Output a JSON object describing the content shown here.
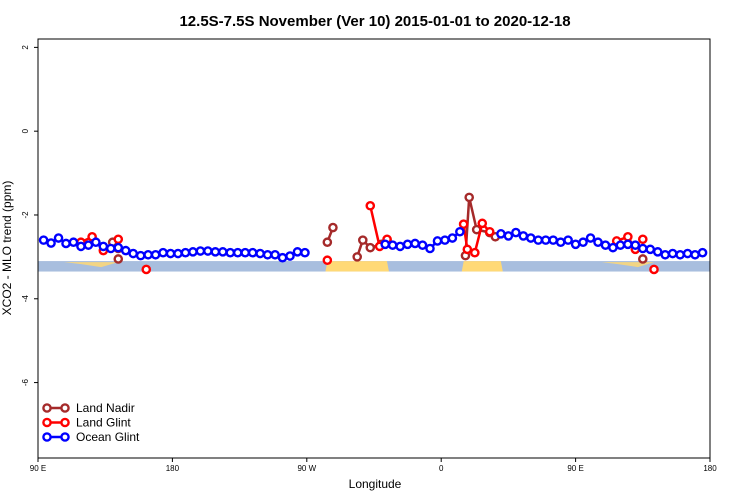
{
  "chart_data": {
    "type": "line",
    "title": "12.5S-7.5S November (Ver 10)   2015-01-01 to 2020-12-18",
    "xlabel": "Longitude",
    "ylabel": "XCO2 - MLO trend (ppm)",
    "xlim": [
      0,
      360
    ],
    "ylim": [
      -7.8,
      2.2
    ],
    "x_ticks": [
      {
        "value": 0,
        "label": "90 E"
      },
      {
        "value": 72,
        "label": "180"
      },
      {
        "value": 144,
        "label": "90 W"
      },
      {
        "value": 216,
        "label": "0"
      },
      {
        "value": 288,
        "label": "90 E"
      },
      {
        "value": 360,
        "label": "180"
      }
    ],
    "y_ticks": [
      {
        "value": 2,
        "label": "2"
      },
      {
        "value": 0,
        "label": "0"
      },
      {
        "value": -2,
        "label": "-2"
      },
      {
        "value": -4,
        "label": "-4"
      },
      {
        "value": -6,
        "label": "-6"
      }
    ],
    "land_mask": {
      "baseline_y": -3.35,
      "band_top": -3.1,
      "ocean_color": "#a8bede",
      "land_color": "#ffd976",
      "land_segments": [
        [
          154,
          188
        ],
        [
          227,
          249
        ]
      ],
      "coast_wisps": [
        {
          "x": [
            14,
            43
          ],
          "color": "#ffd976"
        },
        {
          "x": [
            302,
            330
          ],
          "color": "#ffd976"
        }
      ]
    },
    "series": [
      {
        "name": "Land Nadir",
        "color": "#a52a2a",
        "segments": [
          [
            [
              40,
              -2.65
            ],
            [
              43,
              -2.8
            ]
          ],
          [
            [
              43,
              -3.05
            ]
          ],
          [
            [
              155,
              -2.65
            ],
            [
              158,
              -2.3
            ]
          ],
          [
            [
              171,
              -3.0
            ],
            [
              174,
              -2.6
            ],
            [
              178,
              -2.78
            ],
            [
              184,
              -2.7
            ],
            [
              187,
              -2.6
            ]
          ],
          [
            [
              229,
              -2.97
            ],
            [
              231,
              -1.58
            ],
            [
              235,
              -2.35
            ],
            [
              242,
              -2.42
            ],
            [
              245,
              -2.52
            ]
          ],
          [
            [
              324,
              -3.05
            ]
          ]
        ]
      },
      {
        "name": "Land Glint",
        "color": "#ff0000",
        "segments": [
          [
            [
              23,
              -2.65
            ],
            [
              29,
              -2.52
            ],
            [
              35,
              -2.85
            ]
          ],
          [
            [
              43,
              -2.58
            ]
          ],
          [
            [
              58,
              -3.3
            ]
          ],
          [
            [
              155,
              -3.08
            ]
          ],
          [
            [
              178,
              -1.78
            ],
            [
              183,
              -2.75
            ],
            [
              187,
              -2.58
            ]
          ],
          [
            [
              228,
              -2.22
            ],
            [
              230,
              -2.82
            ],
            [
              234,
              -2.9
            ],
            [
              238,
              -2.2
            ],
            [
              242,
              -2.4
            ]
          ],
          [
            [
              310,
              -2.62
            ],
            [
              316,
              -2.52
            ],
            [
              320,
              -2.82
            ]
          ],
          [
            [
              324,
              -2.58
            ]
          ],
          [
            [
              330,
              -3.3
            ]
          ]
        ]
      },
      {
        "name": "Ocean Glint",
        "color": "#0000ff",
        "segments": [
          [
            [
              3,
              -2.6
            ],
            [
              7,
              -2.67
            ],
            [
              11,
              -2.55
            ],
            [
              15,
              -2.68
            ],
            [
              19,
              -2.65
            ],
            [
              23,
              -2.75
            ],
            [
              27,
              -2.72
            ],
            [
              31,
              -2.65
            ],
            [
              35,
              -2.75
            ],
            [
              39,
              -2.8
            ],
            [
              43,
              -2.78
            ],
            [
              47,
              -2.85
            ],
            [
              51,
              -2.92
            ],
            [
              55,
              -2.97
            ],
            [
              59,
              -2.95
            ],
            [
              63,
              -2.95
            ],
            [
              67,
              -2.9
            ],
            [
              71,
              -2.92
            ],
            [
              75,
              -2.92
            ],
            [
              79,
              -2.9
            ],
            [
              83,
              -2.88
            ],
            [
              87,
              -2.86
            ],
            [
              91,
              -2.86
            ],
            [
              95,
              -2.88
            ],
            [
              99,
              -2.88
            ],
            [
              103,
              -2.9
            ],
            [
              107,
              -2.9
            ],
            [
              111,
              -2.9
            ],
            [
              115,
              -2.9
            ],
            [
              119,
              -2.92
            ],
            [
              123,
              -2.95
            ],
            [
              127,
              -2.95
            ],
            [
              131,
              -3.02
            ],
            [
              135,
              -2.98
            ],
            [
              139,
              -2.88
            ],
            [
              143,
              -2.9
            ]
          ],
          [
            [
              186,
              -2.7
            ],
            [
              190,
              -2.72
            ],
            [
              194,
              -2.75
            ],
            [
              198,
              -2.7
            ],
            [
              202,
              -2.68
            ],
            [
              206,
              -2.72
            ],
            [
              210,
              -2.8
            ],
            [
              214,
              -2.62
            ],
            [
              218,
              -2.6
            ],
            [
              222,
              -2.55
            ],
            [
              226,
              -2.4
            ]
          ],
          [
            [
              248,
              -2.45
            ],
            [
              252,
              -2.5
            ],
            [
              256,
              -2.42
            ],
            [
              260,
              -2.5
            ],
            [
              264,
              -2.55
            ],
            [
              268,
              -2.6
            ],
            [
              272,
              -2.6
            ],
            [
              276,
              -2.6
            ],
            [
              280,
              -2.65
            ],
            [
              284,
              -2.6
            ],
            [
              288,
              -2.7
            ],
            [
              292,
              -2.65
            ],
            [
              296,
              -2.55
            ],
            [
              300,
              -2.65
            ],
            [
              304,
              -2.72
            ],
            [
              308,
              -2.78
            ],
            [
              312,
              -2.72
            ],
            [
              316,
              -2.7
            ],
            [
              320,
              -2.72
            ],
            [
              324,
              -2.8
            ],
            [
              328,
              -2.82
            ],
            [
              332,
              -2.88
            ],
            [
              336,
              -2.95
            ],
            [
              340,
              -2.92
            ],
            [
              344,
              -2.95
            ],
            [
              348,
              -2.92
            ],
            [
              352,
              -2.95
            ],
            [
              356,
              -2.9
            ]
          ]
        ]
      }
    ],
    "legend_position": "bottom-left"
  }
}
